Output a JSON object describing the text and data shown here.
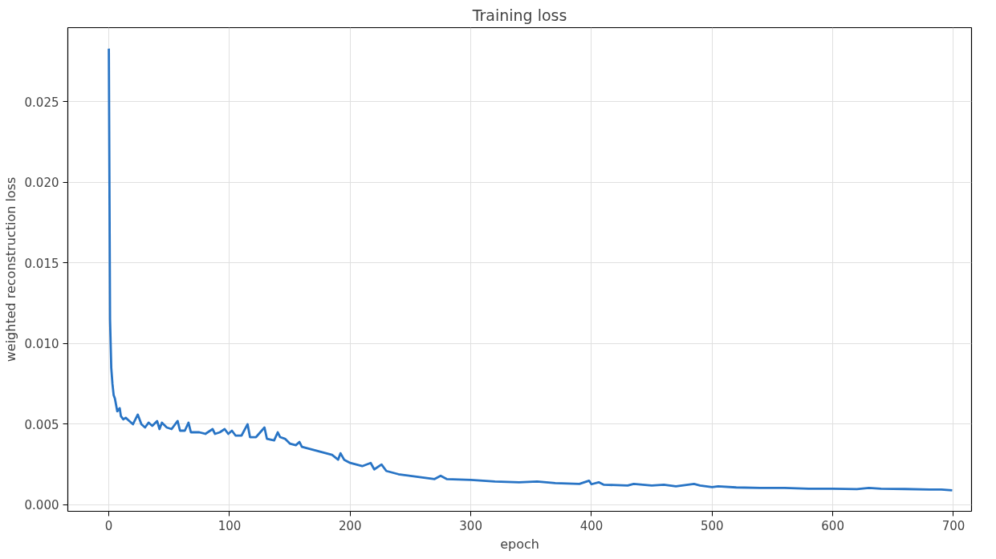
{
  "chart_data": {
    "type": "line",
    "title": "Training loss",
    "xlabel": "epoch",
    "ylabel": "weighted reconstruction loss",
    "xlim": [
      -34,
      715
    ],
    "xticks": [
      0,
      100,
      200,
      300,
      400,
      500,
      600,
      700
    ],
    "ylim": [
      -0.0004,
      0.0296
    ],
    "yticks": [
      {
        "value": 0,
        "label": "0.000"
      },
      {
        "value": 0.005,
        "label": "0.005"
      },
      {
        "value": 0.01,
        "label": "0.010"
      },
      {
        "value": 0.015,
        "label": "0.015"
      },
      {
        "value": 0.02,
        "label": "0.020"
      },
      {
        "value": 0.025,
        "label": "0.025"
      }
    ],
    "grid": true,
    "marker": "none",
    "line_style": "solid",
    "x": [
      0,
      1,
      2,
      3,
      4,
      5,
      7,
      9,
      10,
      12,
      14,
      17,
      20,
      24,
      27,
      30,
      33,
      36,
      40,
      42,
      44,
      48,
      52,
      57,
      59,
      63,
      66,
      68,
      75,
      80,
      86,
      88,
      92,
      96,
      99,
      102,
      105,
      110,
      115,
      117,
      122,
      129,
      131,
      137,
      140,
      142,
      146,
      150,
      155,
      158,
      160,
      170,
      180,
      185,
      190,
      192,
      195,
      200,
      210,
      217,
      220,
      226,
      230,
      240,
      245,
      250,
      260,
      270,
      275,
      280,
      300,
      320,
      340,
      355,
      370,
      390,
      398,
      400,
      406,
      410,
      430,
      435,
      450,
      460,
      470,
      485,
      490,
      500,
      505,
      520,
      540,
      560,
      580,
      600,
      620,
      630,
      640,
      660,
      680,
      690,
      699
    ],
    "series": [
      {
        "color": "#2874c5",
        "values": [
          0.0283,
          0.0115,
          0.0085,
          0.0075,
          0.0068,
          0.0066,
          0.0058,
          0.006,
          0.0055,
          0.0053,
          0.0054,
          0.0052,
          0.005,
          0.0056,
          0.005,
          0.0048,
          0.0051,
          0.0049,
          0.0052,
          0.0047,
          0.0051,
          0.0048,
          0.0047,
          0.0052,
          0.0046,
          0.0046,
          0.0051,
          0.0045,
          0.0045,
          0.0044,
          0.0047,
          0.0044,
          0.0045,
          0.0047,
          0.0044,
          0.0046,
          0.0043,
          0.0043,
          0.005,
          0.0042,
          0.0042,
          0.0048,
          0.0041,
          0.004,
          0.0045,
          0.0042,
          0.0041,
          0.0038,
          0.0037,
          0.0039,
          0.0036,
          0.0034,
          0.0032,
          0.0031,
          0.0028,
          0.0032,
          0.0028,
          0.0026,
          0.0024,
          0.0026,
          0.0022,
          0.0025,
          0.0021,
          0.0019,
          0.00185,
          0.0018,
          0.0017,
          0.0016,
          0.0018,
          0.0016,
          0.00155,
          0.00145,
          0.0014,
          0.00145,
          0.00135,
          0.0013,
          0.0015,
          0.00128,
          0.0014,
          0.00125,
          0.0012,
          0.0013,
          0.0012,
          0.00125,
          0.00115,
          0.0013,
          0.0012,
          0.0011,
          0.00115,
          0.00108,
          0.00105,
          0.00105,
          0.001,
          0.001,
          0.00097,
          0.00105,
          0.001,
          0.00098,
          0.00095,
          0.00095,
          0.0009
        ]
      }
    ]
  }
}
